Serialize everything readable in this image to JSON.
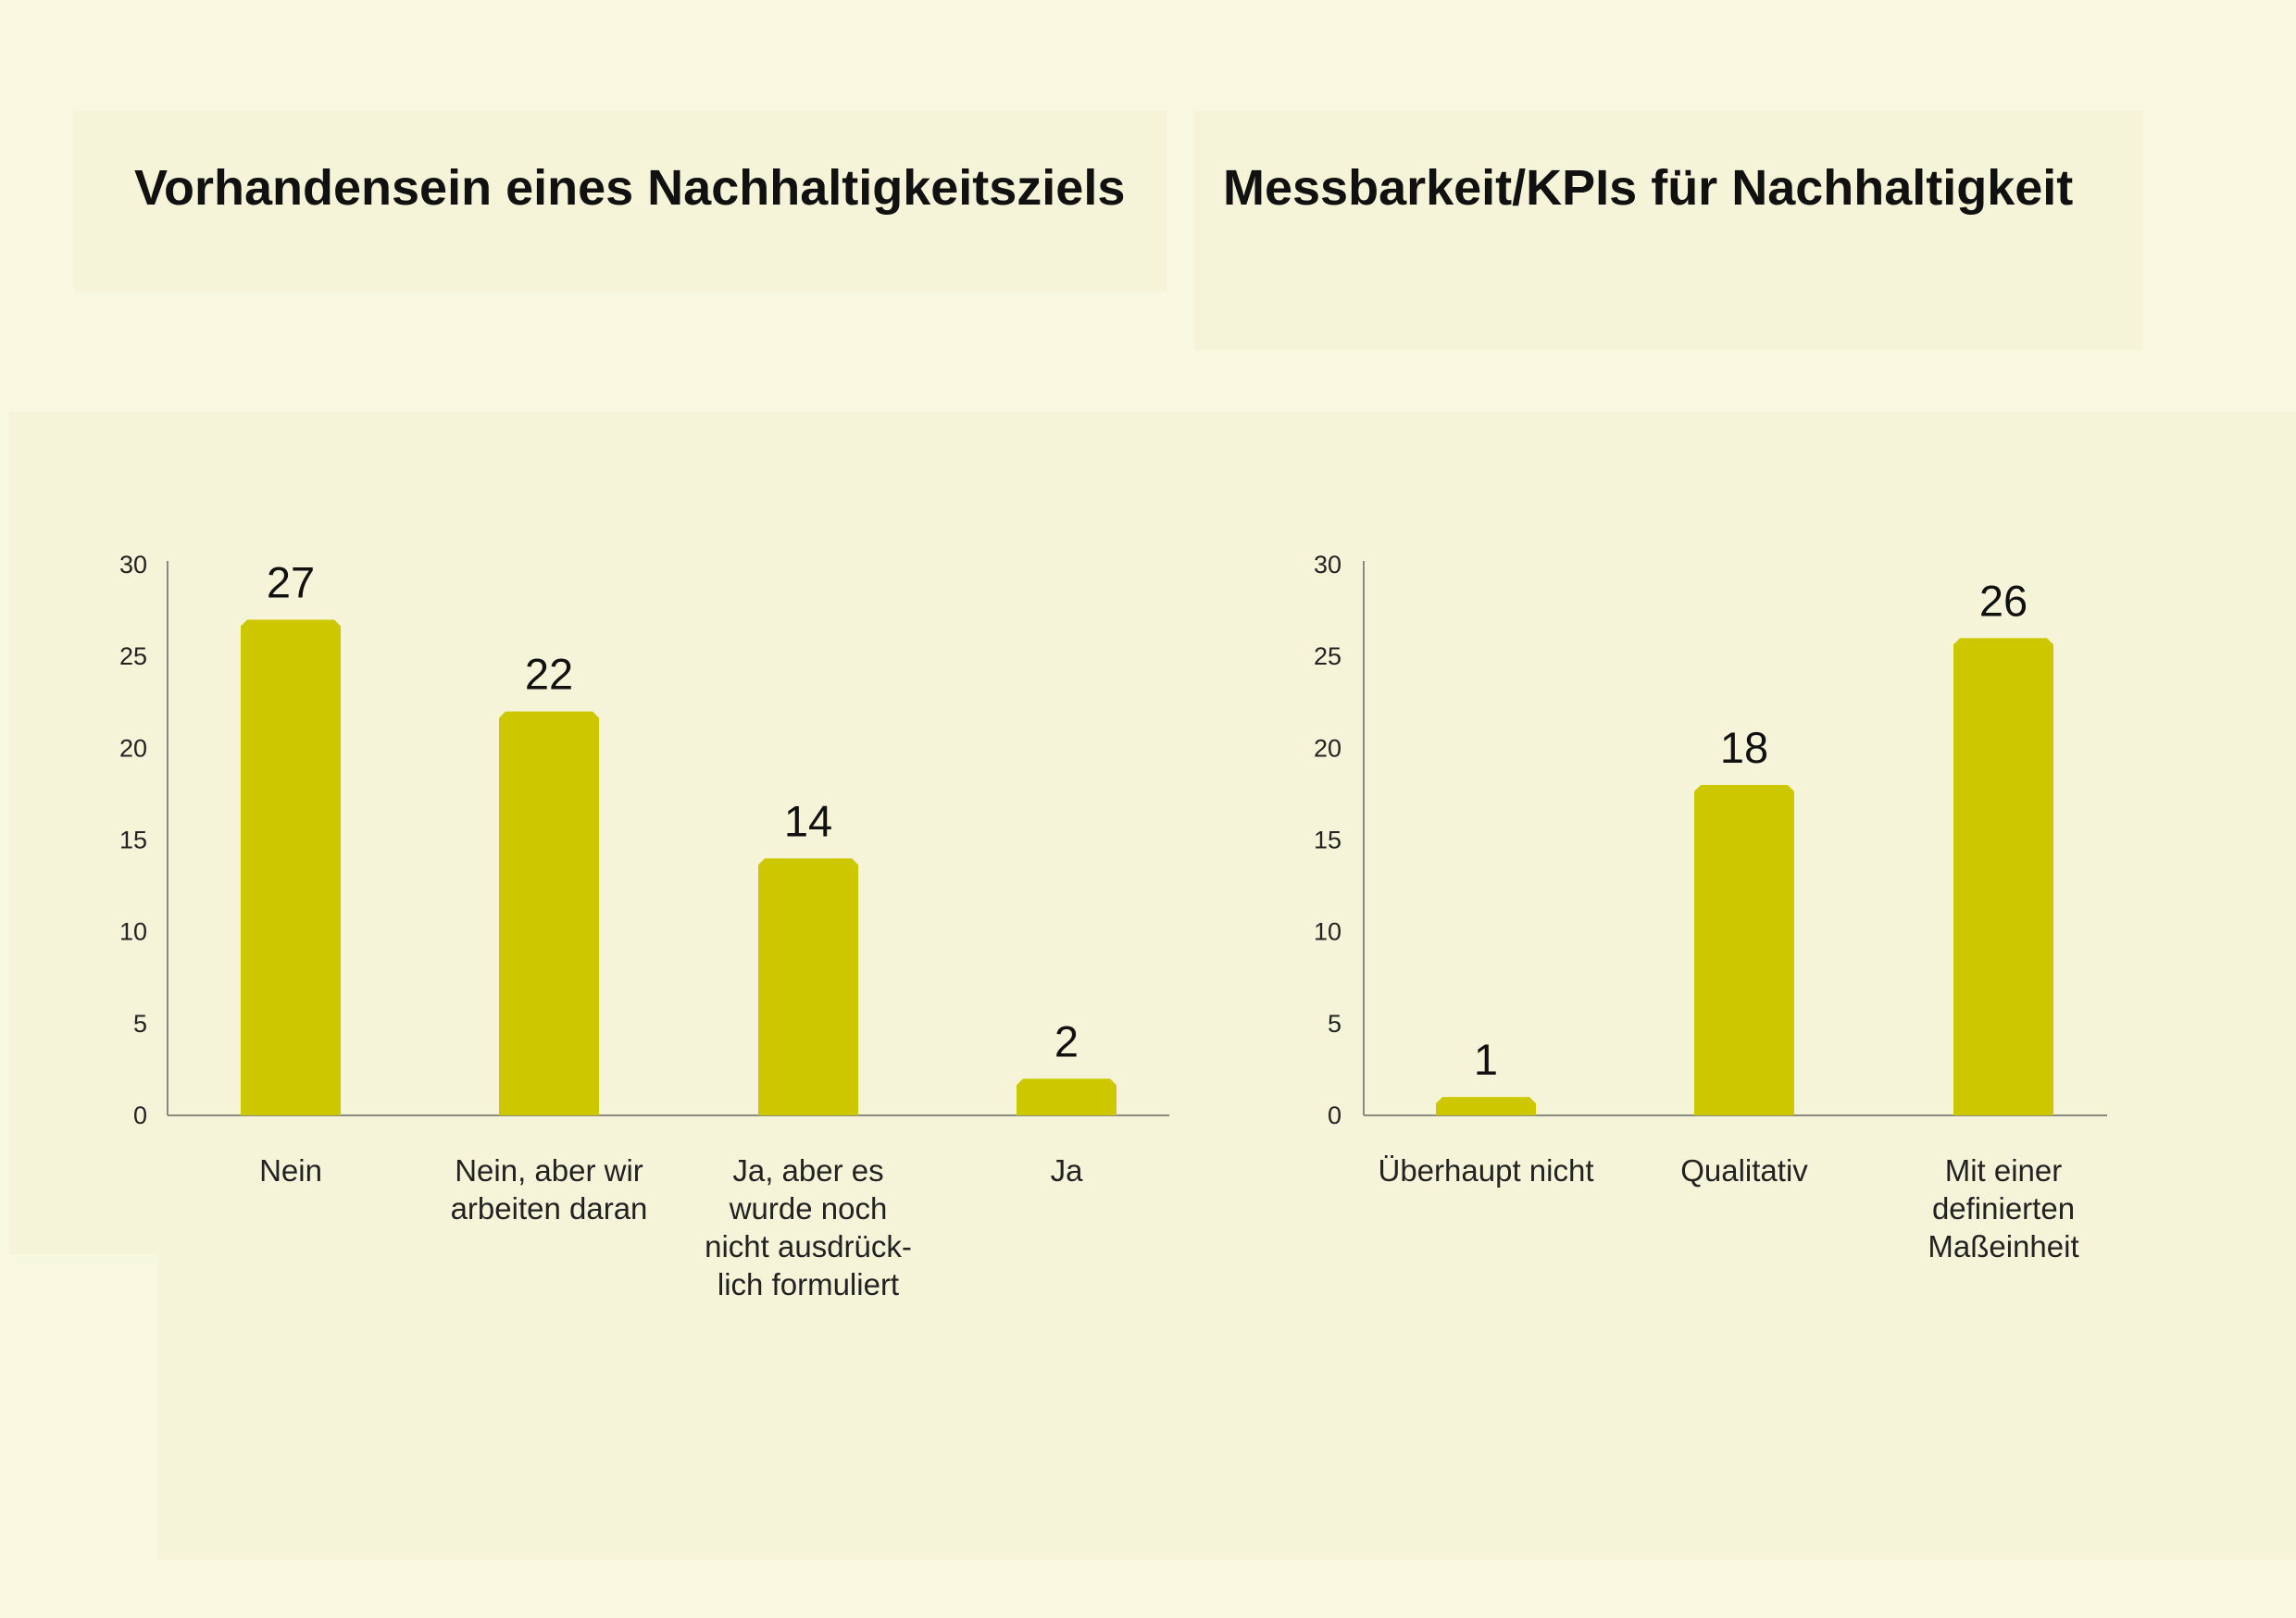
{
  "colors": {
    "background": "#f8f7e0",
    "panel": "#f5f4d9",
    "bar": "#cdc700",
    "axis": "#8a8a80",
    "text": "#111111"
  },
  "chart_data": [
    {
      "type": "bar",
      "title": "Vorhandensein eines Nachhaltigkeitsziels",
      "categories": [
        [
          "Nein"
        ],
        [
          "Nein, aber wir",
          "arbeiten daran"
        ],
        [
          "Ja, aber es",
          "wurde noch",
          "nicht ausdrück-",
          "lich formuliert"
        ],
        [
          "Ja"
        ]
      ],
      "values": [
        27,
        22,
        14,
        2
      ],
      "y_ticks": [
        "0",
        "5",
        "10",
        "15",
        "20",
        "25",
        "30"
      ],
      "ylim": [
        0,
        30
      ],
      "grid": false,
      "data_labels": true
    },
    {
      "type": "bar",
      "title": "Messbarkeit/KPIs für Nachhaltigkeit",
      "categories": [
        [
          "Überhaupt nicht"
        ],
        [
          "Qualitativ"
        ],
        [
          "Mit einer",
          "definierten",
          "Maßeinheit"
        ]
      ],
      "values": [
        1,
        18,
        26
      ],
      "y_ticks": [
        "0",
        "5",
        "10",
        "15",
        "20",
        "25",
        "30"
      ],
      "ylim": [
        0,
        30
      ],
      "grid": false,
      "data_labels": true
    }
  ]
}
